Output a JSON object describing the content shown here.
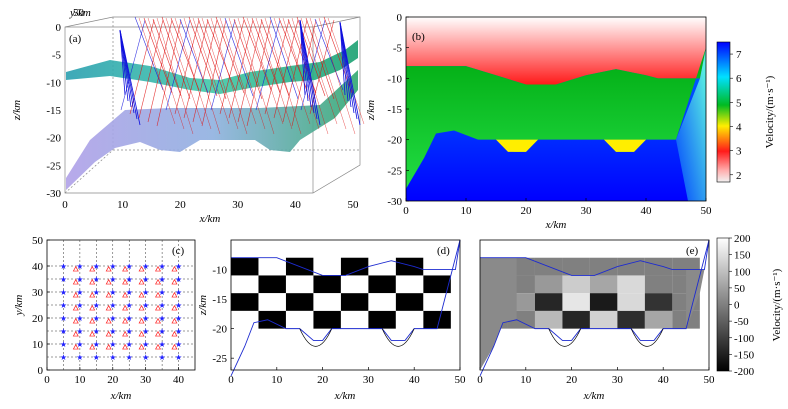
{
  "colors": {
    "velocity_stops": [
      "#f2f2f2",
      "#ff1a1a",
      "#ffee00",
      "#00bb22",
      "#00e0ff",
      "#0000ff"
    ],
    "layer_surface": "#22b8b0",
    "ray_red": "#e01010",
    "ray_blue": "#1010dd",
    "station_blue": "#2020ff",
    "station_red": "#ff2020",
    "interface_line": "#1d2bd0"
  },
  "panels": {
    "a": {
      "label": "(a)",
      "zlabel": "z/km",
      "xlabel": "x/km",
      "ylabel": "y/km",
      "zticks": [
        "0",
        "-5",
        "-10",
        "-15",
        "-20",
        "-25",
        "-30"
      ],
      "xticks": [
        "0",
        "10",
        "20",
        "30",
        "40",
        "50"
      ],
      "yticks": [
        "50"
      ]
    },
    "b": {
      "label": "(b)",
      "zlabel": "z/km",
      "xlabel": "x/km",
      "zticks": [
        "0",
        "-5",
        "-10",
        "-15",
        "-20",
        "-25",
        "-30"
      ],
      "xticks": [
        "0",
        "10",
        "20",
        "30",
        "40",
        "50"
      ],
      "colorbar_label": "Velocity/(m·s⁻¹)",
      "colorbar_ticks": [
        "7",
        "6",
        "5",
        "4",
        "3",
        "2"
      ]
    },
    "c": {
      "label": "(c)",
      "ylabel": "y/km",
      "xlabel": "x/km",
      "yticks": [
        "50",
        "40",
        "30",
        "20",
        "10",
        "0"
      ],
      "xticks": [
        "0",
        "10",
        "20",
        "30",
        "40"
      ]
    },
    "d": {
      "label": "(d)",
      "zlabel": "z/km",
      "xlabel": "x/km",
      "zticks": [
        "-10",
        "-15",
        "-20",
        "-25"
      ],
      "xticks": [
        "0",
        "10",
        "20",
        "30",
        "40",
        "50"
      ]
    },
    "e": {
      "label": "(e)",
      "xlabel": "x/km",
      "xticks": [
        "0",
        "10",
        "20",
        "30",
        "40",
        "50"
      ],
      "colorbar_label": "Velocity/(m·s⁻¹)",
      "colorbar_ticks": [
        "200",
        "150",
        "100",
        "50",
        "0",
        "-50",
        "-100",
        "-150",
        "-200"
      ]
    }
  },
  "chart_data": [
    {
      "type": "heatmap",
      "panel": "b",
      "xlabel": "x/km",
      "ylabel": "z/km",
      "xlim": [
        0,
        50
      ],
      "ylim": [
        -30,
        0
      ],
      "colorbar_range": [
        1.7,
        7.5
      ],
      "interfaces": {
        "upper": [
          [
            0,
            -8
          ],
          [
            10,
            -8
          ],
          [
            15,
            -9.5
          ],
          [
            20,
            -11
          ],
          [
            25,
            -11
          ],
          [
            30,
            -9.5
          ],
          [
            35,
            -8.5
          ],
          [
            40,
            -9.5
          ],
          [
            42,
            -10
          ],
          [
            49,
            -10
          ],
          [
            50,
            -5
          ]
        ],
        "lower": [
          [
            0,
            -28
          ],
          [
            3,
            -23
          ],
          [
            5,
            -19
          ],
          [
            8,
            -18.5
          ],
          [
            12,
            -20
          ],
          [
            15,
            -20
          ],
          [
            18,
            -22
          ],
          [
            20,
            -22
          ],
          [
            22,
            -20
          ],
          [
            33,
            -20
          ],
          [
            35,
            -22
          ],
          [
            38,
            -22
          ],
          [
            40,
            -20
          ],
          [
            45,
            -20
          ],
          [
            50,
            -5
          ]
        ]
      }
    },
    {
      "type": "scatter",
      "panel": "c",
      "xlabel": "x/km",
      "ylabel": "y/km",
      "xlim": [
        0,
        45
      ],
      "ylim": [
        0,
        50
      ],
      "series": [
        {
          "marker": "star",
          "color": "#2020ff",
          "x_range": [
            5,
            40
          ],
          "y_range": [
            5,
            40
          ],
          "step": 2.5
        },
        {
          "marker": "triangle",
          "color": "#ff2020",
          "x_range": [
            8.75,
            38.75
          ],
          "y_range": [
            8.75,
            38.75
          ],
          "step": 2.5
        }
      ],
      "dashed_grid_x": [
        5,
        10,
        15,
        20,
        25,
        30,
        35,
        40
      ],
      "dashed_grid_y": [
        5,
        10,
        15,
        20,
        25,
        30,
        35,
        40
      ]
    },
    {
      "type": "heatmap",
      "panel": "d",
      "xlabel": "x/km",
      "ylabel": "z/km",
      "xlim": [
        0,
        50
      ],
      "ylim": [
        -27,
        -5
      ],
      "checker_x_edges": [
        0,
        6,
        12,
        18,
        24,
        30,
        36,
        42,
        48
      ],
      "checker_z_edges": [
        -8,
        -11,
        -14,
        -17,
        -20
      ],
      "checker_values": [
        1,
        -1
      ]
    },
    {
      "type": "heatmap",
      "panel": "e",
      "xlabel": "x/km",
      "xlim": [
        0,
        50
      ],
      "ylim": [
        -27,
        -5
      ],
      "colorbar_range": [
        -200,
        200
      ],
      "recovered_values": [
        [
          0,
          0,
          0,
          0,
          0,
          0,
          0,
          0
        ],
        [
          0,
          0,
          40,
          120,
          60,
          140,
          0,
          0
        ],
        [
          0,
          40,
          -140,
          160,
          -160,
          140,
          -120,
          0
        ],
        [
          0,
          0,
          90,
          -140,
          130,
          -130,
          60,
          0
        ],
        [
          0,
          0,
          0,
          30,
          0,
          30,
          0,
          0
        ]
      ]
    }
  ]
}
